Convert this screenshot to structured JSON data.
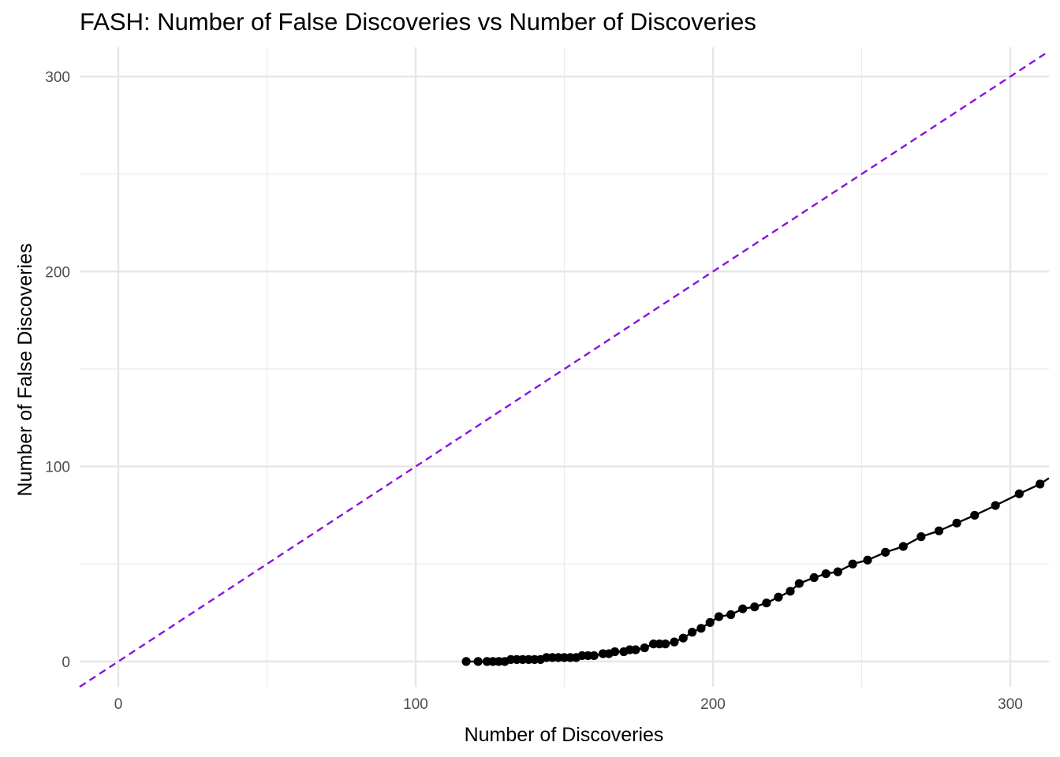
{
  "chart_data": {
    "type": "line",
    "title": "FASH: Number of False Discoveries vs Number of Discoveries",
    "xlabel": "Number of Discoveries",
    "ylabel": "Number of False Discoveries",
    "xlim": [
      -13,
      313
    ],
    "ylim": [
      -13,
      315
    ],
    "x_ticks": [
      "0",
      "100",
      "200",
      "300"
    ],
    "y_ticks": [
      "0",
      "100",
      "200",
      "300"
    ],
    "grid": true,
    "legend": "none",
    "series": [
      {
        "style": "line+points",
        "color": "#000000",
        "x": [
          117,
          121,
          124,
          126,
          128,
          130,
          132,
          134,
          136,
          138,
          140,
          142,
          144,
          146,
          148,
          150,
          152,
          154,
          156,
          158,
          160,
          163,
          165,
          167,
          170,
          172,
          174,
          177,
          180,
          182,
          184,
          187,
          190,
          193,
          196,
          199,
          202,
          206,
          210,
          214,
          218,
          222,
          226,
          229,
          234,
          238,
          242,
          247,
          252,
          258,
          264,
          270,
          276,
          282,
          288,
          295,
          303,
          310,
          313
        ],
        "y": [
          0,
          0,
          0,
          0,
          0,
          0,
          1,
          1,
          1,
          1,
          1,
          1,
          2,
          2,
          2,
          2,
          2,
          2,
          3,
          3,
          3,
          4,
          4,
          5,
          5,
          6,
          6,
          7,
          9,
          9,
          9,
          10,
          12,
          15,
          17,
          20,
          23,
          24,
          27,
          28,
          30,
          33,
          36,
          40,
          43,
          45,
          46,
          50,
          52,
          56,
          59,
          64,
          67,
          71,
          75,
          80,
          86,
          91,
          94
        ]
      }
    ],
    "reference_line": {
      "style": "dashed",
      "color": "#8a12e0",
      "slope": 1,
      "intercept": 0
    }
  }
}
